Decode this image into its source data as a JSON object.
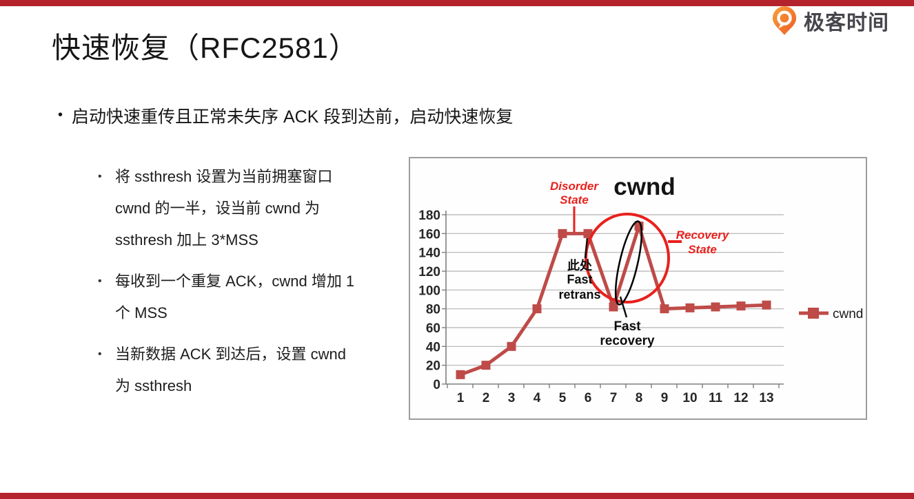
{
  "page": {
    "accent_bar_color": "#b4232c",
    "background": "#ffffff"
  },
  "header": {
    "logo_text": "极客时间",
    "logo_icon": "geektime-pin-icon",
    "logo_icon_colors": [
      "#f9a13a",
      "#ee5a23"
    ]
  },
  "title": "快速恢复（RFC2581）",
  "bullets": {
    "main": "启动快速重传且正常未失序 ACK 段到达前，启动快速恢复",
    "sub": [
      {
        "lines": [
          "将 ssthresh 设置为当前拥塞窗口",
          "cwnd 的一半，设当前 cwnd 为",
          "ssthresh 加上 3*MSS"
        ]
      },
      {
        "lines": [
          "每收到一个重复 ACK，cwnd 增加 1",
          "个 MSS"
        ]
      },
      {
        "lines": [
          "当新数据 ACK 到达后，设置 cwnd",
          "为 ssthresh"
        ]
      }
    ]
  },
  "chart_data": {
    "type": "line",
    "title": "cwnd",
    "categories": [
      "1",
      "2",
      "3",
      "4",
      "5",
      "6",
      "7",
      "8",
      "9",
      "10",
      "11",
      "12",
      "13"
    ],
    "series": [
      {
        "name": "cwnd",
        "color": "#be4b48",
        "marker": "square",
        "values": [
          10,
          20,
          40,
          80,
          160,
          160,
          82,
          168,
          80,
          81,
          82,
          83,
          84
        ]
      }
    ],
    "ylim": [
      0,
      180
    ],
    "ytick_step": 20,
    "grid": true,
    "legend_position": "right-middle",
    "annotations": [
      {
        "id": "disorder-state",
        "lines": [
          "Disorder",
          "State"
        ],
        "color": "#e8211d",
        "style": "bold-italic",
        "target": "flat segment at cwnd=160 between x=5 and x=6"
      },
      {
        "id": "fast-retrans",
        "lines": [
          "此处",
          "Fast",
          "retrans"
        ],
        "color": "#0d0d0d",
        "style": "bold",
        "target": "point x=6 (cwnd=160)"
      },
      {
        "id": "fast-recovery",
        "lines": [
          "Fast",
          "recovery"
        ],
        "color": "#0d0d0d",
        "style": "bold",
        "target": "valley at x=7 (cwnd=82)"
      },
      {
        "id": "recovery-state",
        "lines": [
          "Recovery",
          "State"
        ],
        "color": "#e8211d",
        "style": "bold-italic",
        "target": "red circled region x=6..8"
      },
      {
        "id": "recovery-circle",
        "shape": "ellipse",
        "color": "#e8211d",
        "target": "region x=6..8, cwnd 82..180"
      },
      {
        "id": "growth-ellipse",
        "shape": "ellipse",
        "color": "#000000",
        "target": "rising segment x=7..8"
      }
    ]
  }
}
